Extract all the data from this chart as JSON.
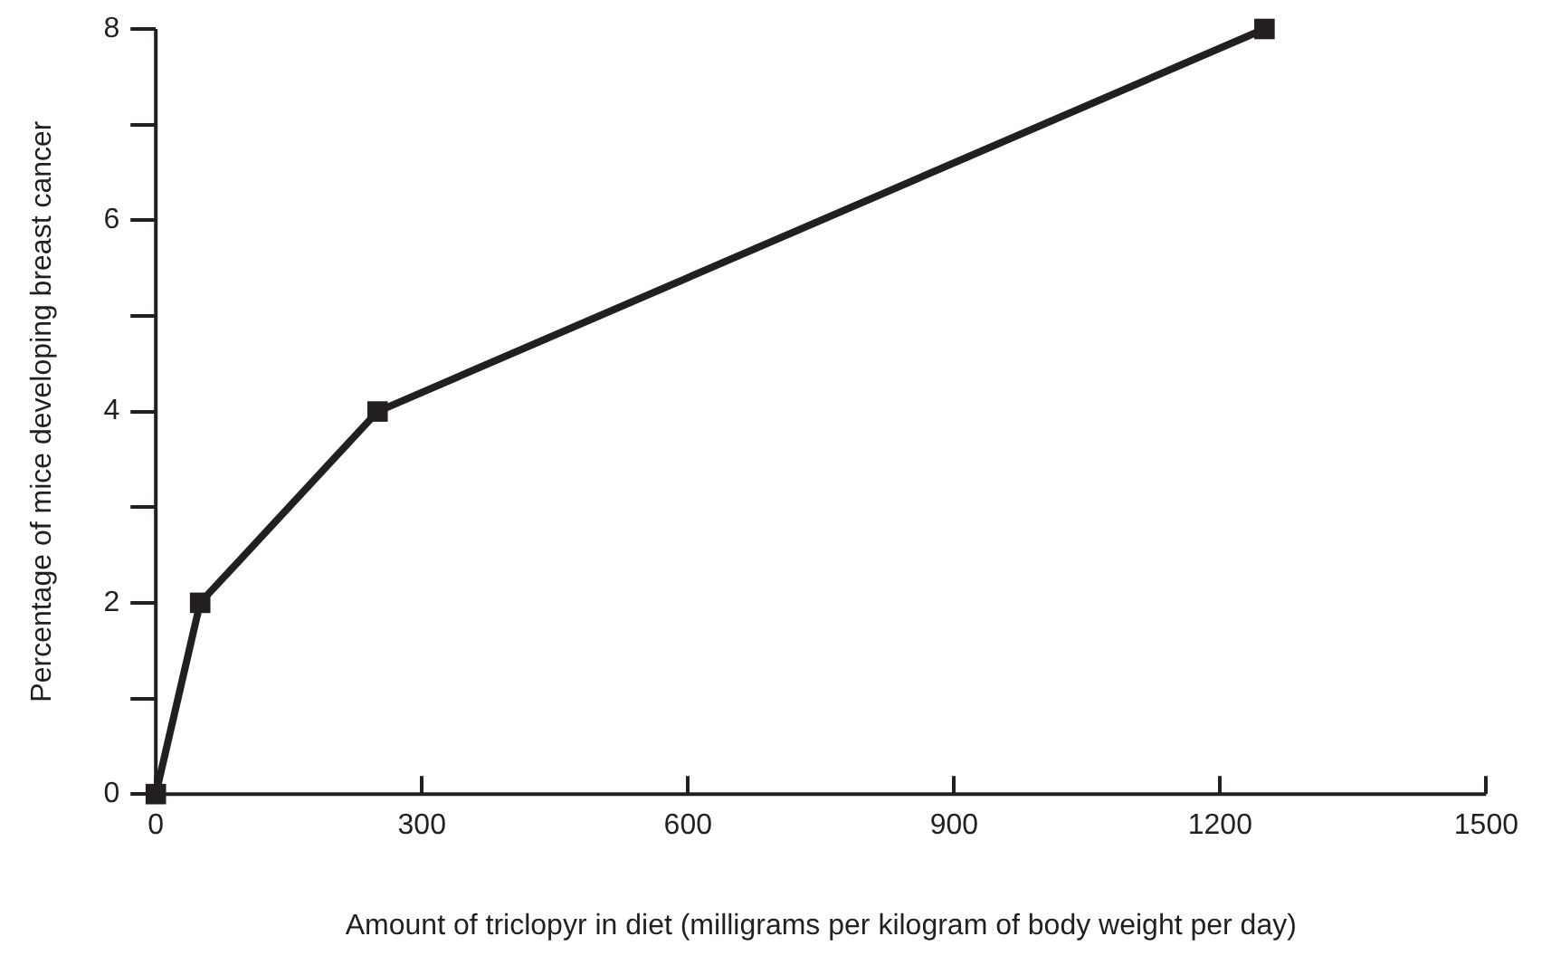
{
  "chart_data": {
    "type": "line",
    "xlabel": "Amount of triclopyr in diet (milligrams per kilogram of body weight per day)",
    "ylabel": "Percentage of mice developing breast cancer",
    "x": [
      0,
      50,
      250,
      1250
    ],
    "series": [
      {
        "color": "#231f20",
        "values": [
          0,
          2,
          4,
          8
        ]
      }
    ],
    "xlim": [
      0,
      1500
    ],
    "xticks": [
      0,
      300,
      600,
      900,
      1200,
      1500
    ],
    "ylim": [
      0,
      8
    ],
    "yticks": [
      0,
      {
        "value": 1,
        "label": null
      },
      2,
      {
        "value": 3,
        "label": null
      },
      4,
      {
        "value": 5,
        "label": null
      },
      6,
      {
        "value": 7,
        "label": null
      },
      8
    ],
    "grid": false,
    "legend": false,
    "marker": "square",
    "line_style": "solid"
  }
}
